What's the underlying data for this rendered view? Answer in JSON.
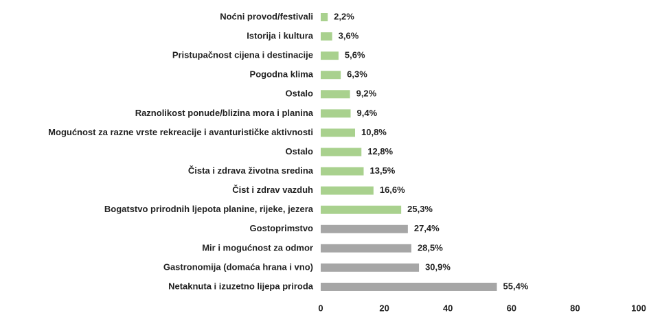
{
  "chart_data": {
    "type": "hbar",
    "categories": [
      "Noćni provod/festivali",
      "Istorija i kultura",
      "Pristupačnost cijena i destinacije",
      "Pogodna klima",
      "Ostalo",
      "Raznolikost ponude/blizina mora i planina",
      "Mogućnost za razne vrste rekreacije i avanturističke aktivnosti",
      "Ostalo",
      "Čista i zdrava životna sredina",
      "Čist i zdrav vazduh",
      "Bogatstvo prirodnih ljepota planine, rijeke, jezera",
      "Gostoprimstvo",
      "Mir i mogućnost za odmor",
      "Gastronomija (domaća hrana i vno)",
      "Netaknuta i izuzetno lijepa priroda"
    ],
    "values": [
      2.2,
      3.6,
      5.6,
      6.3,
      9.2,
      9.4,
      10.8,
      12.8,
      13.5,
      16.6,
      25.3,
      27.4,
      28.5,
      30.9,
      55.4
    ],
    "value_labels": [
      "2,2%",
      "3,6%",
      "5,6%",
      "6,3%",
      "9,2%",
      "9,4%",
      "10,8%",
      "12,8%",
      "13,5%",
      "16,6%",
      "25,3%",
      "27,4%",
      "28,5%",
      "30,9%",
      "55,4%"
    ],
    "colors": [
      "#a9d18e",
      "#a9d18e",
      "#a9d18e",
      "#a9d18e",
      "#a9d18e",
      "#a9d18e",
      "#a9d18e",
      "#a9d18e",
      "#a9d18e",
      "#a9d18e",
      "#a9d18e",
      "#a6a6a6",
      "#a6a6a6",
      "#a6a6a6",
      "#a6a6a6"
    ],
    "xlim": [
      0,
      100
    ],
    "xticks": [
      0,
      20,
      40,
      60,
      80,
      100
    ],
    "grid": false
  }
}
